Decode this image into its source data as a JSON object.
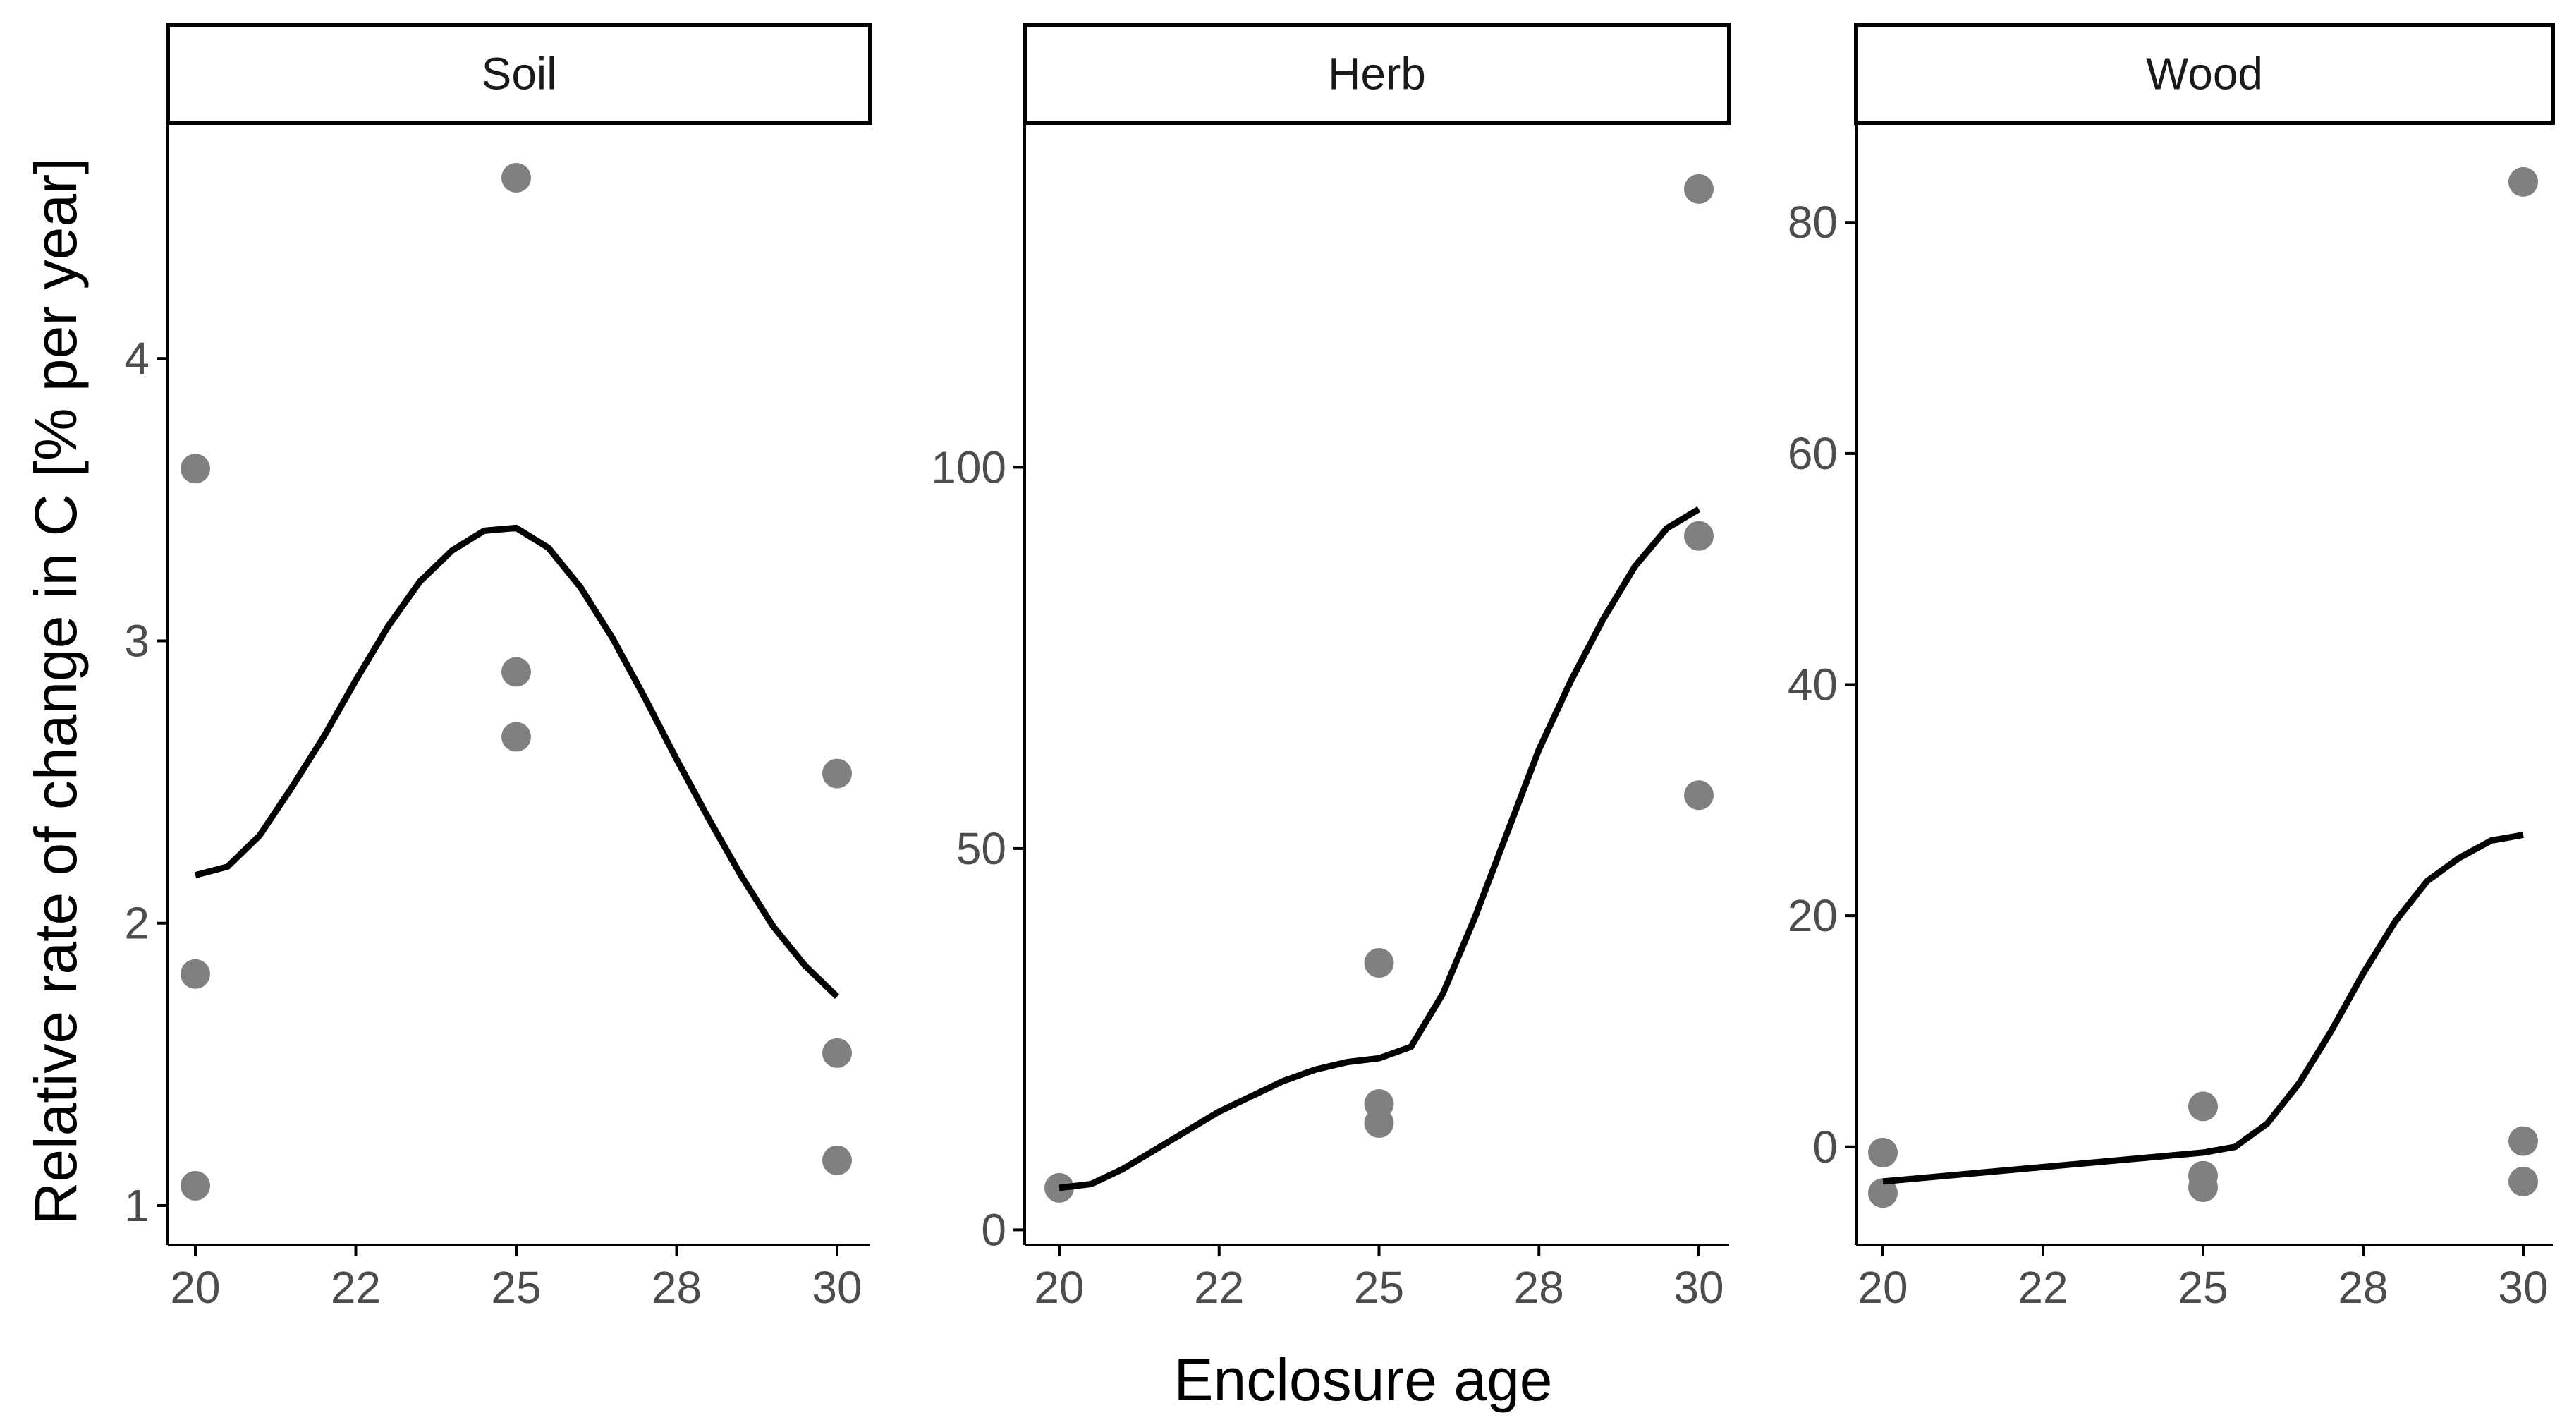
{
  "chart_data": {
    "type": "scatter",
    "layout": "facet",
    "xlabel": "Enclosure age",
    "ylabel": "Relative rate of change in C [% per year]",
    "x_tick_values": [
      20,
      22.5,
      25,
      27.5,
      30
    ],
    "x_tick_labels": [
      "20",
      "22",
      "25",
      "28",
      "30"
    ],
    "xlim": [
      19.6,
      30.5
    ],
    "colors": {
      "points": "#808080",
      "line": "#000000",
      "axis": "#000000"
    },
    "panels": [
      {
        "title": "Soil",
        "ylim": [
          0.86,
          4.83
        ],
        "y_ticks": [
          1,
          2,
          3,
          4
        ],
        "y_tick_labels": [
          "1",
          "2",
          "3",
          "4"
        ],
        "points": [
          {
            "x": 20,
            "y": 3.61
          },
          {
            "x": 20,
            "y": 1.82
          },
          {
            "x": 20,
            "y": 1.07
          },
          {
            "x": 25,
            "y": 4.64
          },
          {
            "x": 25,
            "y": 2.89
          },
          {
            "x": 25,
            "y": 2.66
          },
          {
            "x": 30,
            "y": 2.53
          },
          {
            "x": 30,
            "y": 1.54
          },
          {
            "x": 30,
            "y": 1.16
          }
        ],
        "line": [
          {
            "x": 20,
            "y": 2.17
          },
          {
            "x": 20.5,
            "y": 2.2
          },
          {
            "x": 21,
            "y": 2.31
          },
          {
            "x": 21.5,
            "y": 2.48
          },
          {
            "x": 22,
            "y": 2.66
          },
          {
            "x": 22.5,
            "y": 2.86
          },
          {
            "x": 23,
            "y": 3.05
          },
          {
            "x": 23.5,
            "y": 3.21
          },
          {
            "x": 24,
            "y": 3.32
          },
          {
            "x": 24.5,
            "y": 3.39
          },
          {
            "x": 25,
            "y": 3.4
          },
          {
            "x": 25.5,
            "y": 3.33
          },
          {
            "x": 26,
            "y": 3.19
          },
          {
            "x": 26.5,
            "y": 3.01
          },
          {
            "x": 27,
            "y": 2.8
          },
          {
            "x": 27.5,
            "y": 2.58
          },
          {
            "x": 28,
            "y": 2.37
          },
          {
            "x": 28.5,
            "y": 2.17
          },
          {
            "x": 29,
            "y": 1.99
          },
          {
            "x": 29.5,
            "y": 1.85
          },
          {
            "x": 30,
            "y": 1.74
          }
        ]
      },
      {
        "title": "Herb",
        "ylim": [
          -2,
          145
        ],
        "y_ticks": [
          0,
          50,
          100
        ],
        "y_tick_labels": [
          "0",
          "50",
          "100"
        ],
        "points": [
          {
            "x": 20,
            "y": 5.5
          },
          {
            "x": 25,
            "y": 35
          },
          {
            "x": 25,
            "y": 16.5
          },
          {
            "x": 25,
            "y": 14
          },
          {
            "x": 30,
            "y": 136.5
          },
          {
            "x": 30,
            "y": 91
          },
          {
            "x": 30,
            "y": 57
          }
        ],
        "line": [
          {
            "x": 20,
            "y": 5.5
          },
          {
            "x": 20.5,
            "y": 6
          },
          {
            "x": 21,
            "y": 8
          },
          {
            "x": 21.5,
            "y": 10.5
          },
          {
            "x": 22,
            "y": 13
          },
          {
            "x": 22.5,
            "y": 15.5
          },
          {
            "x": 23,
            "y": 17.5
          },
          {
            "x": 23.5,
            "y": 19.5
          },
          {
            "x": 24,
            "y": 21
          },
          {
            "x": 24.5,
            "y": 22
          },
          {
            "x": 25,
            "y": 22.5
          },
          {
            "x": 25.5,
            "y": 24
          },
          {
            "x": 26,
            "y": 31
          },
          {
            "x": 26.5,
            "y": 41
          },
          {
            "x": 27,
            "y": 52
          },
          {
            "x": 27.5,
            "y": 63
          },
          {
            "x": 28,
            "y": 72
          },
          {
            "x": 28.5,
            "y": 80
          },
          {
            "x": 29,
            "y": 87
          },
          {
            "x": 29.5,
            "y": 92
          },
          {
            "x": 30,
            "y": 94.5
          }
        ]
      },
      {
        "title": "Wood",
        "ylim": [
          -8.5,
          88.5
        ],
        "y_ticks": [
          0,
          20,
          40,
          60,
          80
        ],
        "y_tick_labels": [
          "0",
          "20",
          "40",
          "60",
          "80"
        ],
        "points": [
          {
            "x": 20,
            "y": -0.5
          },
          {
            "x": 20,
            "y": -4
          },
          {
            "x": 25,
            "y": 3.5
          },
          {
            "x": 25,
            "y": -2.5
          },
          {
            "x": 25,
            "y": -3.5
          },
          {
            "x": 30,
            "y": 83.5
          },
          {
            "x": 30,
            "y": 0.5
          },
          {
            "x": 30,
            "y": -3
          }
        ],
        "line": [
          {
            "x": 20,
            "y": -3
          },
          {
            "x": 21,
            "y": -2.5
          },
          {
            "x": 22,
            "y": -2
          },
          {
            "x": 23,
            "y": -1.5
          },
          {
            "x": 24,
            "y": -1
          },
          {
            "x": 25,
            "y": -0.5
          },
          {
            "x": 25.5,
            "y": 0
          },
          {
            "x": 26,
            "y": 2
          },
          {
            "x": 26.5,
            "y": 5.5
          },
          {
            "x": 27,
            "y": 10
          },
          {
            "x": 27.5,
            "y": 15
          },
          {
            "x": 28,
            "y": 19.5
          },
          {
            "x": 28.5,
            "y": 23
          },
          {
            "x": 29,
            "y": 25
          },
          {
            "x": 29.5,
            "y": 26.5
          },
          {
            "x": 30,
            "y": 27
          }
        ]
      }
    ]
  }
}
